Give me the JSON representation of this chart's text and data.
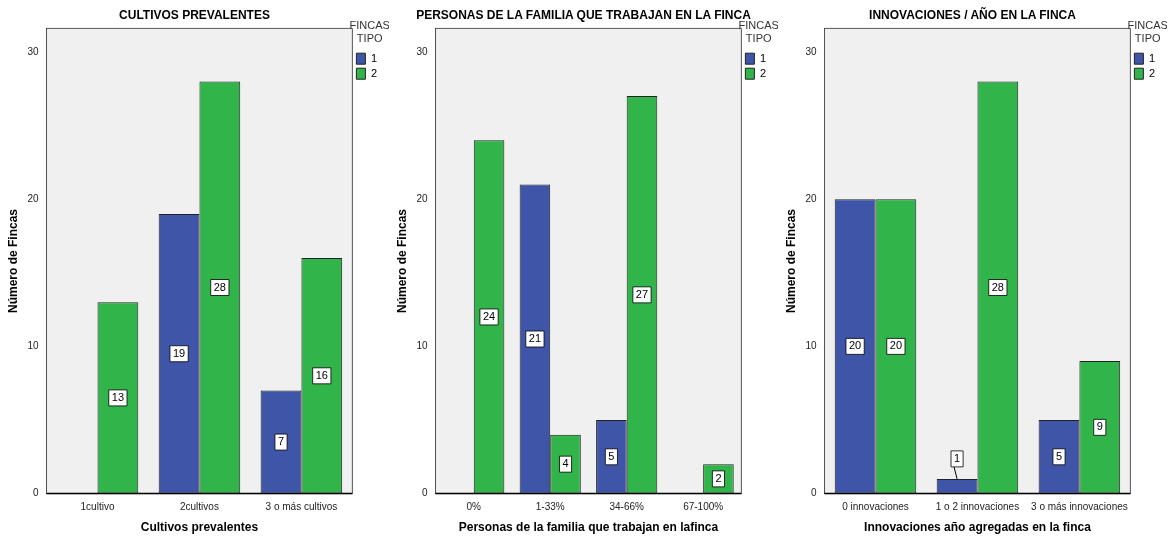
{
  "chart_data": [
    {
      "type": "bar",
      "title": "CULTIVOS PREVALENTES",
      "xlabel": "Cultivos prevalentes",
      "ylabel": "Número de Fincas",
      "legend_title": "FINCAS TIPO",
      "categories": [
        "1cultivo",
        "2cultivos",
        "3 o más cultivos"
      ],
      "series": [
        {
          "name": "1",
          "color": "#3e55a8",
          "values": [
            null,
            19,
            7
          ]
        },
        {
          "name": "2",
          "color": "#31b44a",
          "values": [
            13,
            28,
            16
          ]
        }
      ],
      "ylim": [
        0,
        31.6
      ],
      "yticks": [
        0,
        10,
        20,
        30
      ],
      "grid": false,
      "legend": "top right",
      "data_labels": true
    },
    {
      "type": "bar",
      "title": "PERSONAS DE LA FAMILIA QUE TRABAJAN EN LA FINCA",
      "xlabel": "Personas de la familia que trabajan en lafinca",
      "ylabel": "Número de Fincas",
      "legend_title": "FINCAS TIPO",
      "categories": [
        "0%",
        "1-33%",
        "34-66%",
        "67-100%"
      ],
      "series": [
        {
          "name": "1",
          "color": "#3e55a8",
          "values": [
            null,
            21,
            5,
            null
          ]
        },
        {
          "name": "2",
          "color": "#31b44a",
          "values": [
            24,
            4,
            27,
            2
          ]
        }
      ],
      "ylim": [
        0,
        31.6
      ],
      "yticks": [
        0,
        10,
        20,
        30
      ],
      "grid": false,
      "legend": "top right",
      "data_labels": true
    },
    {
      "type": "bar",
      "title": "INNOVACIONES / AÑO EN LA FINCA",
      "xlabel": "Innovaciones año agregadas en la finca",
      "ylabel": "Número de Fincas",
      "legend_title": "FINCAS TIPO",
      "categories": [
        "0 innovaciones",
        "1 o 2 innovaciones",
        "3 o más innovaciones"
      ],
      "series": [
        {
          "name": "1",
          "color": "#3e55a8",
          "values": [
            20,
            1,
            5
          ]
        },
        {
          "name": "2",
          "color": "#31b44a",
          "values": [
            20,
            28,
            9
          ]
        }
      ],
      "ylim": [
        0,
        31.6
      ],
      "yticks": [
        0,
        10,
        20,
        30
      ],
      "grid": false,
      "legend": "top right",
      "data_labels": true
    }
  ]
}
